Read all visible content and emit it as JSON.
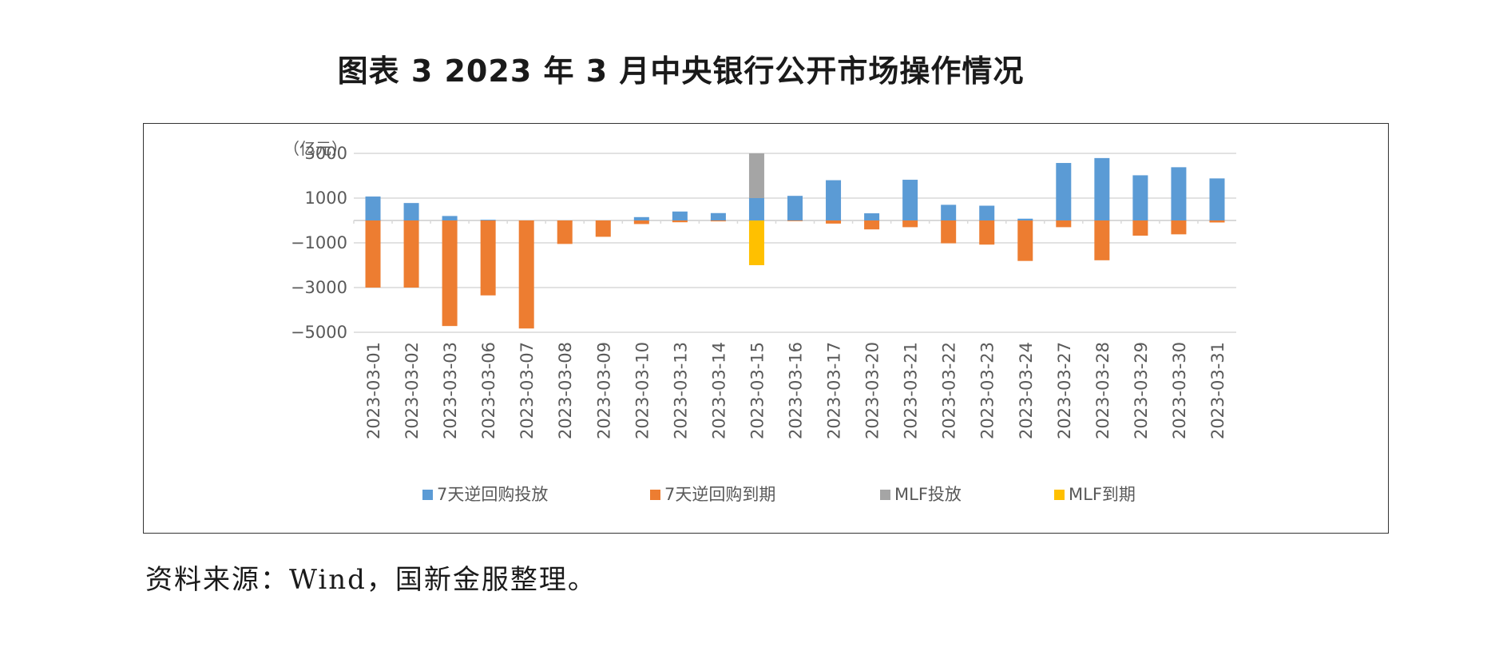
{
  "figure": {
    "title": "图表 3  2023 年 3 月中央银行公开市场操作情况",
    "source": "资料来源：Wind，国新金服整理。"
  },
  "colors": {
    "reverse_repo_injection": "#5B9BD5",
    "reverse_repo_maturity": "#ED7D31",
    "mlf_injection": "#A5A5A5",
    "mlf_maturity": "#FFC000"
  },
  "chart_data": {
    "type": "bar",
    "stacked": true,
    "unit_label": "（亿元）",
    "ylim": [
      -5000,
      3000
    ],
    "yticks": [
      3000,
      1000,
      -1000,
      -3000,
      -5000
    ],
    "ytick_labels": [
      "3000",
      "1000",
      "−1000",
      "−3000",
      "−5000"
    ],
    "grid": true,
    "legend_position": "bottom",
    "categories": [
      "2023-03-01",
      "2023-03-02",
      "2023-03-03",
      "2023-03-06",
      "2023-03-07",
      "2023-03-08",
      "2023-03-09",
      "2023-03-10",
      "2023-03-13",
      "2023-03-14",
      "2023-03-15",
      "2023-03-16",
      "2023-03-17",
      "2023-03-20",
      "2023-03-21",
      "2023-03-22",
      "2023-03-23",
      "2023-03-24",
      "2023-03-27",
      "2023-03-28",
      "2023-03-29",
      "2023-03-30",
      "2023-03-31"
    ],
    "series": [
      {
        "name": "7天逆回购投放",
        "values": [
          1070,
          780,
          200,
          30,
          0,
          0,
          0,
          150,
          400,
          330,
          1000,
          1100,
          1800,
          320,
          1820,
          700,
          660,
          80,
          2570,
          2790,
          2020,
          2380,
          1880
        ]
      },
      {
        "name": "7天逆回购到期",
        "values": [
          -3000,
          -3000,
          -4720,
          -3350,
          -4830,
          -1050,
          -730,
          -160,
          -80,
          -40,
          0,
          -30,
          -140,
          -400,
          -300,
          -1020,
          -1080,
          -1810,
          -300,
          -1780,
          -680,
          -620,
          -90
        ]
      },
      {
        "name": "MLF投放",
        "values": [
          0,
          0,
          0,
          0,
          0,
          0,
          0,
          0,
          0,
          0,
          2000,
          0,
          0,
          0,
          0,
          0,
          0,
          0,
          0,
          0,
          0,
          0,
          0
        ]
      },
      {
        "name": "MLF到期",
        "values": [
          0,
          0,
          0,
          0,
          0,
          0,
          0,
          0,
          0,
          0,
          -2000,
          0,
          0,
          0,
          0,
          0,
          0,
          0,
          0,
          0,
          0,
          0,
          0
        ]
      }
    ]
  }
}
